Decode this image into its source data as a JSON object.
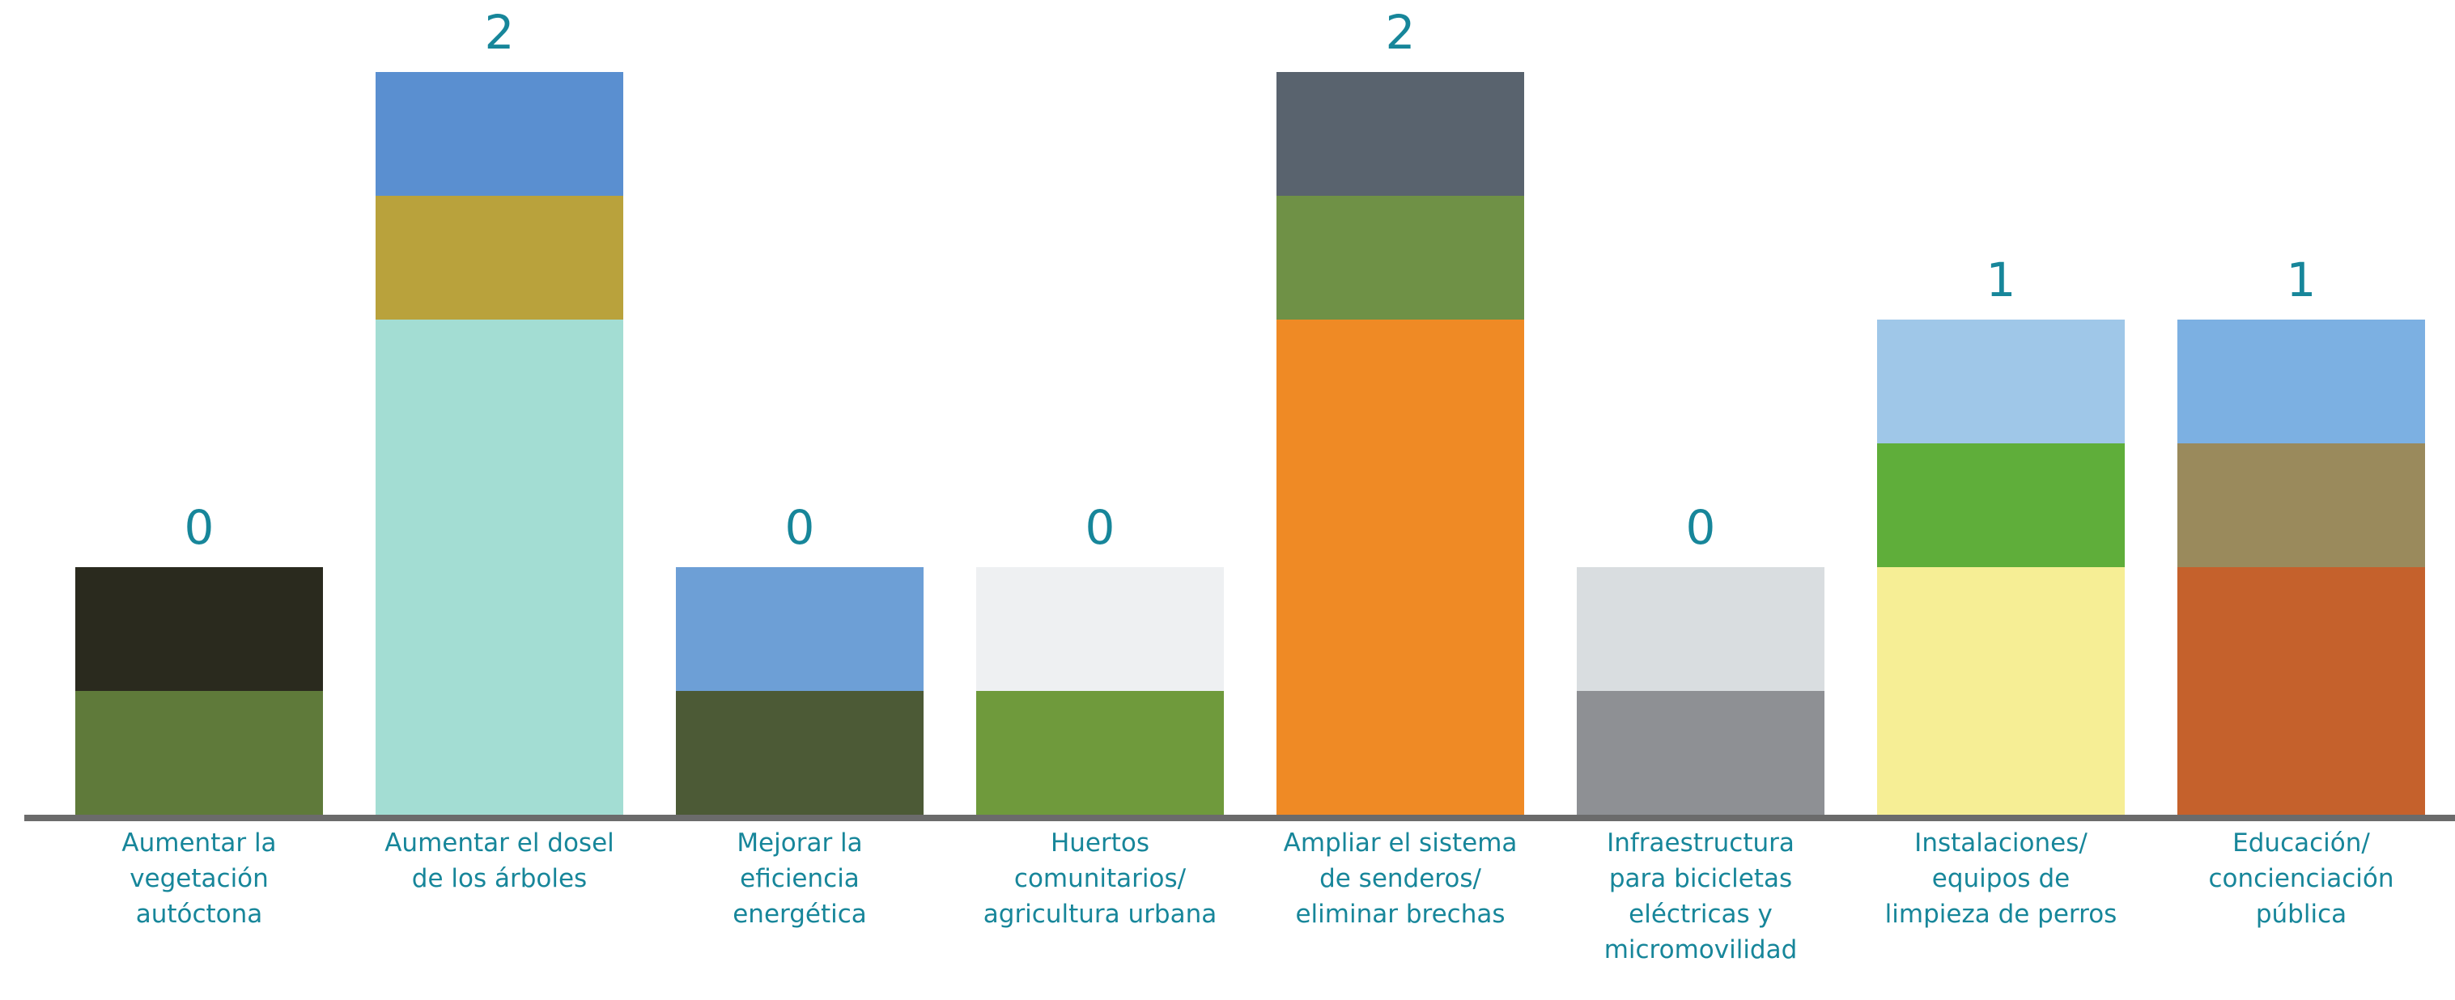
{
  "chart_data": {
    "type": "bar",
    "categories": [
      "Aumentar la vegetación autóctona",
      "Aumentar el dosel de los árboles",
      "Mejorar la eficiencia energética",
      "Huertos comunitarios/ agricultura urbana",
      "Ampliar el sistema de senderos/ eliminar brechas",
      "Infraestructura para bicicletas eléctricas y micromovilidad",
      "Instalaciones/ equipos de limpieza de perros",
      "Educación/ concienciación pública"
    ],
    "values": [
      0,
      2,
      0,
      0,
      2,
      0,
      1,
      1
    ],
    "colors": [
      null,
      "#a3ddd3",
      null,
      null,
      "#ef8a25",
      null,
      "#f6ee95",
      "#c5612c"
    ]
  }
}
